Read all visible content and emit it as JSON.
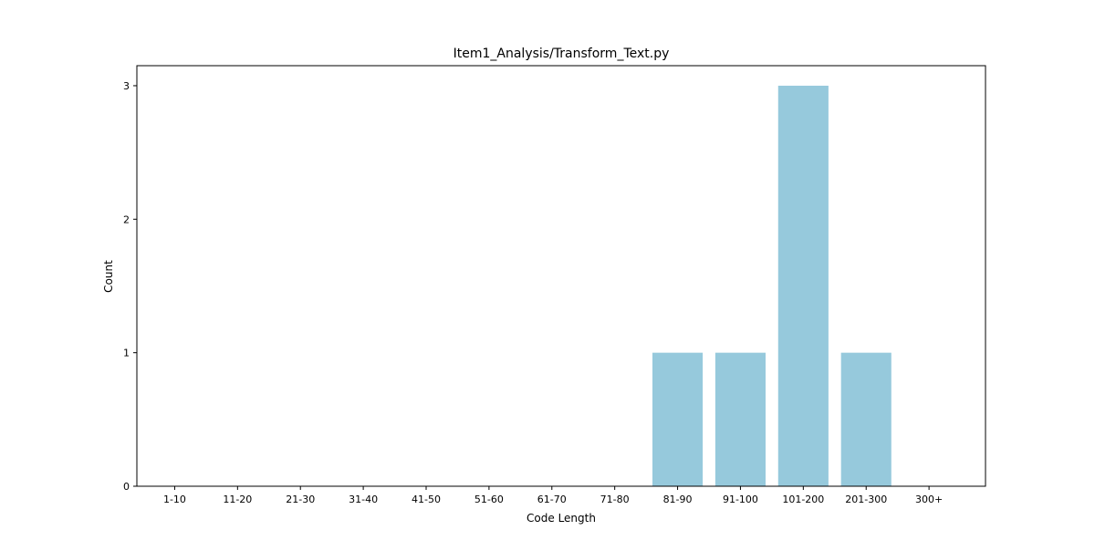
{
  "chart_data": {
    "type": "bar",
    "title": "Item1_Analysis/Transform_Text.py",
    "xlabel": "Code Length",
    "ylabel": "Count",
    "categories": [
      "1-10",
      "11-20",
      "21-30",
      "31-40",
      "41-50",
      "51-60",
      "61-70",
      "71-80",
      "81-90",
      "91-100",
      "101-200",
      "201-300",
      "300+"
    ],
    "values": [
      0,
      0,
      0,
      0,
      0,
      0,
      0,
      0,
      1,
      1,
      3,
      1,
      0
    ],
    "ylim": [
      0,
      3.15
    ],
    "yticks": [
      "0",
      "1",
      "2",
      "3"
    ],
    "bar_color": "#96c9dc",
    "grid": false,
    "legend": "none"
  }
}
